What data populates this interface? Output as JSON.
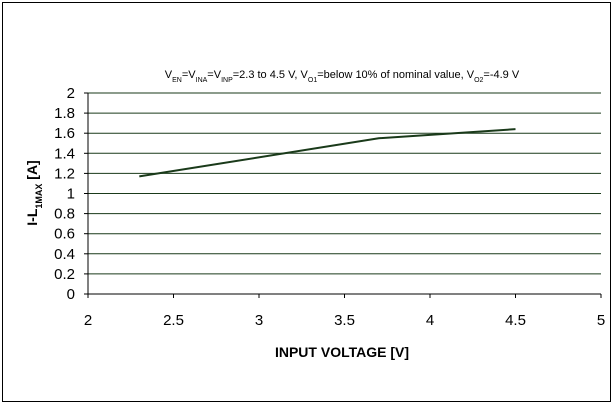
{
  "chart_data": {
    "type": "line",
    "title_parts": [
      {
        "t": "V",
        "s": false
      },
      {
        "t": "EN",
        "s": true
      },
      {
        "t": "=V",
        "s": false
      },
      {
        "t": "INA",
        "s": true
      },
      {
        "t": "=V",
        "s": false
      },
      {
        "t": "INP",
        "s": true
      },
      {
        "t": "=2.3 to 4.5 V, V",
        "s": false
      },
      {
        "t": "O1",
        "s": true
      },
      {
        "t": "=below 10% of nominal value, V",
        "s": false
      },
      {
        "t": "O2",
        "s": true
      },
      {
        "t": "=-4.9 V",
        "s": false
      }
    ],
    "xlabel": "INPUT VOLTAGE [V]",
    "ylabel_parts": [
      {
        "t": "I-L",
        "s": false
      },
      {
        "t": "1MAX",
        "s": true
      },
      {
        "t": " [A]",
        "s": false
      }
    ],
    "xlim": [
      2,
      5
    ],
    "ylim": [
      0,
      2
    ],
    "x_ticks": [
      "2",
      "2.5",
      "3",
      "3.5",
      "4",
      "4.5",
      "5"
    ],
    "y_ticks": [
      "0",
      "0.2",
      "0.4",
      "0.6",
      "0.8",
      "1",
      "1.2",
      "1.4",
      "1.6",
      "1.8",
      "2"
    ],
    "grid": "horizontal",
    "line_color": "#1a3a1a",
    "series": [
      {
        "x": [
          2.3,
          3.7,
          4.5
        ],
        "y": [
          1.17,
          1.55,
          1.64
        ]
      }
    ]
  }
}
